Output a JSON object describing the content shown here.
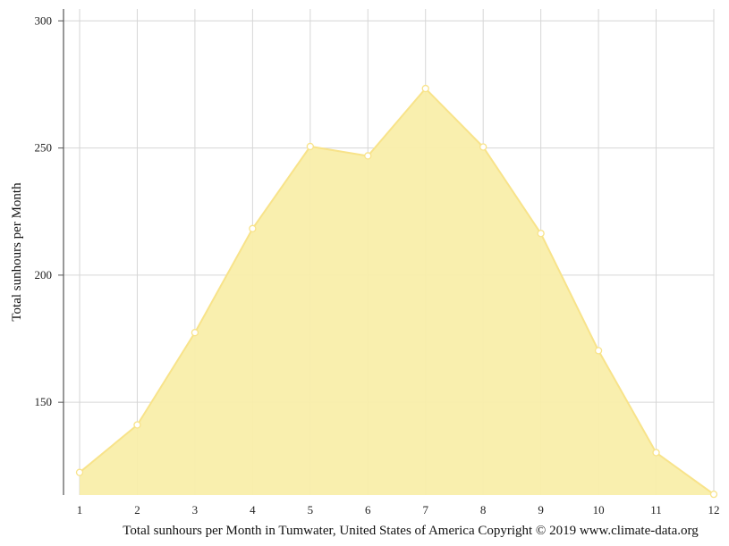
{
  "chart_data": {
    "type": "area",
    "x": [
      "1",
      "2",
      "3",
      "4",
      "5",
      "6",
      "7",
      "8",
      "9",
      "10",
      "11",
      "12"
    ],
    "series": [
      {
        "values": [
          122.4,
          141.1,
          177.4,
          218.3,
          250.6,
          246.9,
          273.4,
          250.4,
          216.4,
          170.3,
          130.2,
          113.8
        ]
      }
    ],
    "yticks": [
      150,
      200,
      250,
      300
    ],
    "ylim": [
      113.5,
      304.7
    ],
    "ylabel": "Total sunhours per Month",
    "xlabel": "",
    "caption": "Total sunhours per Month in Tumwater, United States of America Copyright © 2019 www.climate-data.org",
    "grid": true,
    "colors": {
      "fill": "#f9eeaa",
      "line": "#f8e38a",
      "marker_fill": "#ffffff",
      "grid": "#d6d6d6",
      "axis": "#555555"
    }
  }
}
